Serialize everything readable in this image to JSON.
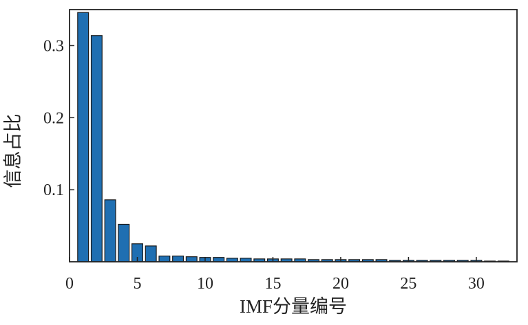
{
  "chart_data": {
    "type": "bar",
    "xlabel": "IMF分量编号",
    "ylabel": "信息占比",
    "x": [
      1,
      2,
      3,
      4,
      5,
      6,
      7,
      8,
      9,
      10,
      11,
      12,
      13,
      14,
      15,
      16,
      17,
      18,
      19,
      20,
      21,
      22,
      23,
      24,
      25,
      26,
      27,
      28,
      29,
      30,
      31,
      32
    ],
    "values": [
      0.346,
      0.314,
      0.086,
      0.052,
      0.025,
      0.022,
      0.008,
      0.008,
      0.007,
      0.006,
      0.006,
      0.005,
      0.005,
      0.004,
      0.004,
      0.004,
      0.004,
      0.003,
      0.003,
      0.003,
      0.003,
      0.003,
      0.003,
      0.002,
      0.002,
      0.002,
      0.002,
      0.002,
      0.002,
      0.002,
      0.001,
      0.001
    ],
    "xlim": [
      0,
      33
    ],
    "ylim": [
      0,
      0.35
    ],
    "xticks": [
      0,
      5,
      10,
      15,
      20,
      25,
      30
    ],
    "yticks": [
      0.1,
      0.2,
      0.3
    ],
    "xtick_labels": [
      "0",
      "5",
      "10",
      "15",
      "20",
      "25",
      "30"
    ],
    "ytick_labels": [
      "0.1",
      "0.2",
      "0.3"
    ],
    "bar_color": "#1f6fb2",
    "bar_edge_color": "#1a1a1a",
    "grid": false,
    "legend": "none"
  }
}
